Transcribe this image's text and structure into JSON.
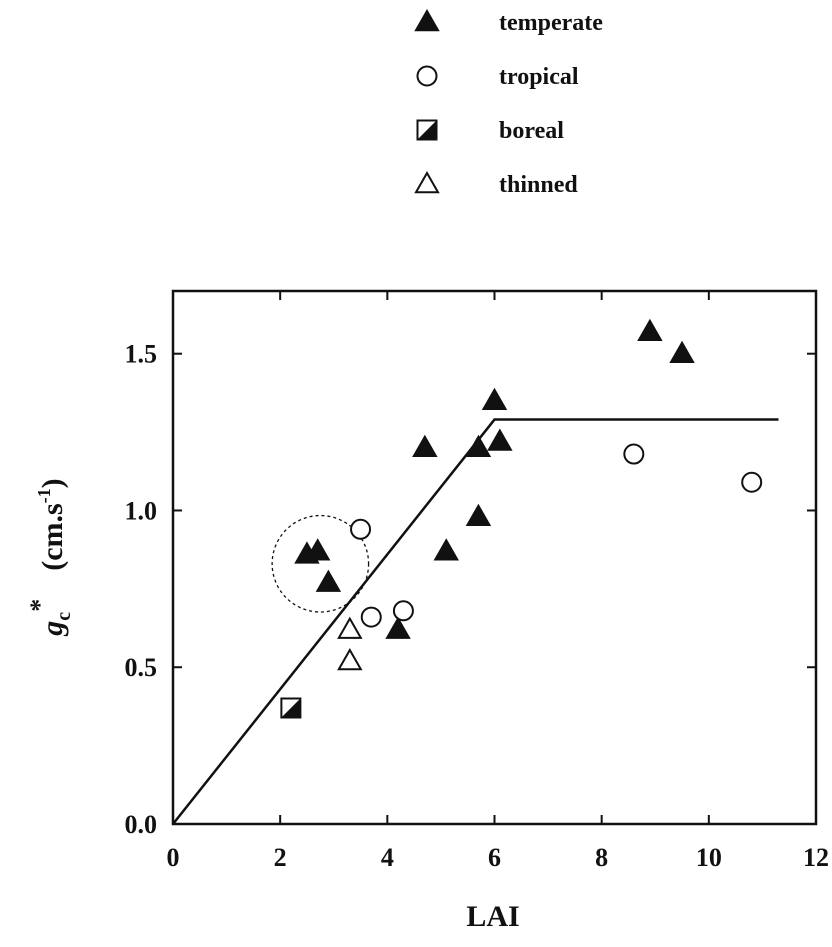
{
  "chart_data": {
    "type": "scatter",
    "title": "",
    "xlabel": "LAI",
    "ylabel_main": "g",
    "ylabel_sub": "c",
    "ylabel_sup": "*",
    "ylabel_units": "(cm.s",
    "ylabel_units_sup": "-1",
    "ylabel_units_close": ")",
    "xlim": [
      0,
      12
    ],
    "ylim": [
      0,
      1.7
    ],
    "xticks": [
      "0",
      "2",
      "4",
      "6",
      "8",
      "10",
      "12"
    ],
    "yticks": [
      "0.0",
      "0.5",
      "1.0",
      "1.5"
    ],
    "grid": false,
    "legend_position": "top",
    "series": [
      {
        "name": "temperate",
        "marker": "filled-triangle",
        "points": [
          {
            "x": 2.5,
            "y": 0.86
          },
          {
            "x": 2.7,
            "y": 0.87
          },
          {
            "x": 2.9,
            "y": 0.77
          },
          {
            "x": 4.2,
            "y": 0.62
          },
          {
            "x": 4.7,
            "y": 1.2
          },
          {
            "x": 5.1,
            "y": 0.87
          },
          {
            "x": 5.7,
            "y": 0.98
          },
          {
            "x": 5.7,
            "y": 1.2
          },
          {
            "x": 6.0,
            "y": 1.35
          },
          {
            "x": 6.1,
            "y": 1.22
          },
          {
            "x": 8.9,
            "y": 1.57
          },
          {
            "x": 9.5,
            "y": 1.5
          }
        ]
      },
      {
        "name": "tropical",
        "marker": "open-circle",
        "points": [
          {
            "x": 3.5,
            "y": 0.94
          },
          {
            "x": 3.7,
            "y": 0.66
          },
          {
            "x": 4.3,
            "y": 0.68
          },
          {
            "x": 8.6,
            "y": 1.18
          },
          {
            "x": 10.8,
            "y": 1.09
          }
        ]
      },
      {
        "name": "boreal",
        "marker": "half-filled-square",
        "points": [
          {
            "x": 2.2,
            "y": 0.37
          }
        ]
      },
      {
        "name": "thinned",
        "marker": "open-triangle",
        "points": [
          {
            "x": 3.3,
            "y": 0.62
          },
          {
            "x": 3.3,
            "y": 0.52
          }
        ]
      }
    ],
    "fit_line": {
      "points": [
        {
          "x": 0,
          "y": 0
        },
        {
          "x": 6.0,
          "y": 1.29
        },
        {
          "x": 11.3,
          "y": 1.29
        }
      ]
    },
    "highlight_circle": {
      "cx": 2.75,
      "cy": 0.83,
      "rx": 0.9
    }
  }
}
